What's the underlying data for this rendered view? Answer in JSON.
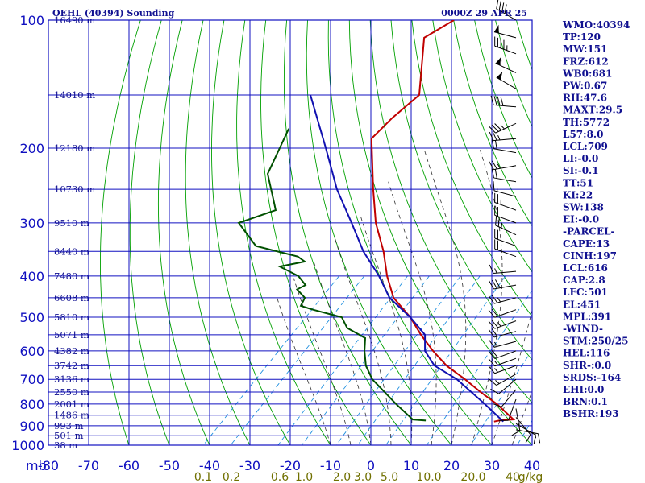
{
  "chart_data": {
    "type": "line",
    "title": "OEHL (40394) Sounding",
    "time_label": "0000Z 29 APR 25",
    "pressure_axis": {
      "unit_label": "mb",
      "levels": [
        100,
        150,
        200,
        250,
        300,
        350,
        400,
        450,
        500,
        550,
        600,
        650,
        700,
        750,
        800,
        850,
        900,
        950,
        1000
      ],
      "labels": [
        "100",
        "200",
        "300",
        "400",
        "500",
        "600",
        "700",
        "800",
        "900",
        "1000"
      ]
    },
    "temperature_axis": {
      "ticks": [
        -80,
        -70,
        -60,
        -50,
        -40,
        -30,
        -20,
        -10,
        0,
        10,
        20,
        30,
        40
      ],
      "labels": [
        "-80",
        "-70",
        "-60",
        "-50",
        "-40",
        "-30",
        "-20",
        "-10",
        "0",
        "10",
        "20",
        "30",
        "40"
      ]
    },
    "mixing_ratio_labels": [
      "0.1",
      "0.2",
      "0.6",
      "1.0",
      "2.0",
      "3.0",
      "5.0",
      "10.0",
      "20.0",
      "40",
      "g/kg"
    ],
    "height_labels": [
      {
        "p": 100,
        "text": "16490 m"
      },
      {
        "p": 150,
        "text": "14010 m"
      },
      {
        "p": 200,
        "text": "12180 m"
      },
      {
        "p": 250,
        "text": "10730 m"
      },
      {
        "p": 300,
        "text": "9510 m"
      },
      {
        "p": 350,
        "text": "8440 m"
      },
      {
        "p": 400,
        "text": "7480 m"
      },
      {
        "p": 450,
        "text": "6608 m"
      },
      {
        "p": 500,
        "text": "5810 m"
      },
      {
        "p": 550,
        "text": "5071 m"
      },
      {
        "p": 600,
        "text": "4382 m"
      },
      {
        "p": 650,
        "text": "3742 m"
      },
      {
        "p": 700,
        "text": "3136 m"
      },
      {
        "p": 750,
        "text": "2550 m"
      },
      {
        "p": 800,
        "text": "2001 m"
      },
      {
        "p": 850,
        "text": "1486 m"
      },
      {
        "p": 900,
        "text": "993 m"
      },
      {
        "p": 950,
        "text": "501 m"
      },
      {
        "p": 1000,
        "text": "38 m"
      }
    ],
    "series": [
      {
        "key": "temperature",
        "color": "#c00000",
        "points": [
          [
            100,
            -85
          ],
          [
            110,
            -88
          ],
          [
            150,
            -75
          ],
          [
            170,
            -76
          ],
          [
            190,
            -76
          ],
          [
            250,
            -63
          ],
          [
            300,
            -54
          ],
          [
            350,
            -45
          ],
          [
            400,
            -38
          ],
          [
            450,
            -31
          ],
          [
            500,
            -22
          ],
          [
            550,
            -15
          ],
          [
            600,
            -8
          ],
          [
            650,
            -1
          ],
          [
            700,
            7
          ],
          [
            750,
            14
          ],
          [
            800,
            21
          ],
          [
            870,
            29
          ],
          [
            875,
            25.7
          ],
          [
            880,
            24.7
          ]
        ]
      },
      {
        "key": "dewpoint",
        "color": "#005000",
        "points": [
          [
            180,
            -99
          ],
          [
            230,
            -93
          ],
          [
            270,
            -84
          ],
          [
            280,
            -82
          ],
          [
            300,
            -88
          ],
          [
            340,
            -78
          ],
          [
            360,
            -65
          ],
          [
            370,
            -62
          ],
          [
            380,
            -67
          ],
          [
            400,
            -60
          ],
          [
            420,
            -56
          ],
          [
            430,
            -57
          ],
          [
            450,
            -53
          ],
          [
            470,
            -52
          ],
          [
            480,
            -48
          ],
          [
            500,
            -39
          ],
          [
            530,
            -35
          ],
          [
            560,
            -28
          ],
          [
            600,
            -25
          ],
          [
            650,
            -21
          ],
          [
            700,
            -16
          ],
          [
            800,
            -4
          ],
          [
            870,
            4
          ],
          [
            875,
            7.5
          ]
        ]
      },
      {
        "key": "parcel",
        "color": "#1010b0",
        "points": [
          [
            150,
            -102
          ],
          [
            200,
            -85
          ],
          [
            250,
            -72
          ],
          [
            300,
            -60
          ],
          [
            350,
            -50
          ],
          [
            400,
            -40
          ],
          [
            450,
            -32
          ],
          [
            500,
            -22
          ],
          [
            550,
            -14
          ],
          [
            600,
            -10
          ],
          [
            650,
            -4
          ],
          [
            700,
            5
          ],
          [
            800,
            18
          ],
          [
            880,
            27
          ]
        ]
      }
    ],
    "wind_barbs": [
      {
        "p": 100,
        "dir": 300,
        "kt": 40
      },
      {
        "p": 110,
        "dir": 285,
        "kt": 50
      },
      {
        "p": 120,
        "dir": 290,
        "kt": 45
      },
      {
        "p": 133,
        "dir": 295,
        "kt": 55
      },
      {
        "p": 145,
        "dir": 300,
        "kt": 50
      },
      {
        "p": 160,
        "dir": 275,
        "kt": 40
      },
      {
        "p": 175,
        "dir": 245,
        "kt": 35
      },
      {
        "p": 190,
        "dir": 265,
        "kt": 25
      },
      {
        "p": 205,
        "dir": 280,
        "kt": 20
      },
      {
        "p": 220,
        "dir": 260,
        "kt": 25
      },
      {
        "p": 240,
        "dir": 280,
        "kt": 20
      },
      {
        "p": 260,
        "dir": 285,
        "kt": 15
      },
      {
        "p": 280,
        "dir": 290,
        "kt": 25
      },
      {
        "p": 300,
        "dir": 290,
        "kt": 20
      },
      {
        "p": 320,
        "dir": 295,
        "kt": 25
      },
      {
        "p": 340,
        "dir": 290,
        "kt": 20
      },
      {
        "p": 360,
        "dir": 290,
        "kt": 20
      },
      {
        "p": 390,
        "dir": 265,
        "kt": 15
      },
      {
        "p": 420,
        "dir": 260,
        "kt": 30
      },
      {
        "p": 450,
        "dir": 255,
        "kt": 25
      },
      {
        "p": 480,
        "dir": 250,
        "kt": 20
      },
      {
        "p": 510,
        "dir": 250,
        "kt": 25
      },
      {
        "p": 540,
        "dir": 255,
        "kt": 20
      },
      {
        "p": 570,
        "dir": 255,
        "kt": 15
      },
      {
        "p": 600,
        "dir": 250,
        "kt": 20
      },
      {
        "p": 625,
        "dir": 250,
        "kt": 15
      },
      {
        "p": 650,
        "dir": 250,
        "kt": 15
      },
      {
        "p": 680,
        "dir": 240,
        "kt": 15
      },
      {
        "p": 700,
        "dir": 230,
        "kt": 10
      },
      {
        "p": 740,
        "dir": 220,
        "kt": 10
      },
      {
        "p": 780,
        "dir": 200,
        "kt": 10
      },
      {
        "p": 820,
        "dir": 170,
        "kt": 10
      },
      {
        "p": 860,
        "dir": 140,
        "kt": 10
      },
      {
        "p": 890,
        "dir": 120,
        "kt": 10
      },
      {
        "p": 920,
        "dir": 100,
        "kt": 15
      }
    ]
  },
  "indices": [
    "WMO:40394",
    "TP:120",
    "MW:151",
    "FRZ:612",
    "WB0:681",
    "PW:0.67",
    "RH:47.6",
    "MAXT:29.5",
    "TH:5772",
    "L57:8.0",
    "LCL:709",
    "LI:-0.0",
    "SI:-0.1",
    "TT:51",
    "KI:22",
    "SW:138",
    "EI:-0.0",
    "-PARCEL-",
    "CAPE:13",
    "CINH:197",
    "LCL:616",
    "CAP:2.8",
    "LFC:501",
    "EL:451",
    "MPL:391",
    "-WIND-",
    "STM:250/25",
    "HEL:116",
    "SHR-:0.0",
    "SRDS:-164",
    "EHI:0.0",
    "BRN:0.1",
    "BSHR:193"
  ],
  "colors": {
    "grid": "#1010c0",
    "dry_adiabat": "#00a000",
    "moist_adiabat": "#303030",
    "mixing_ratio": "#2090e0",
    "mr_label": "#707000",
    "temperature": "#c00000",
    "dewpoint": "#005000",
    "parcel": "#1010b0"
  }
}
